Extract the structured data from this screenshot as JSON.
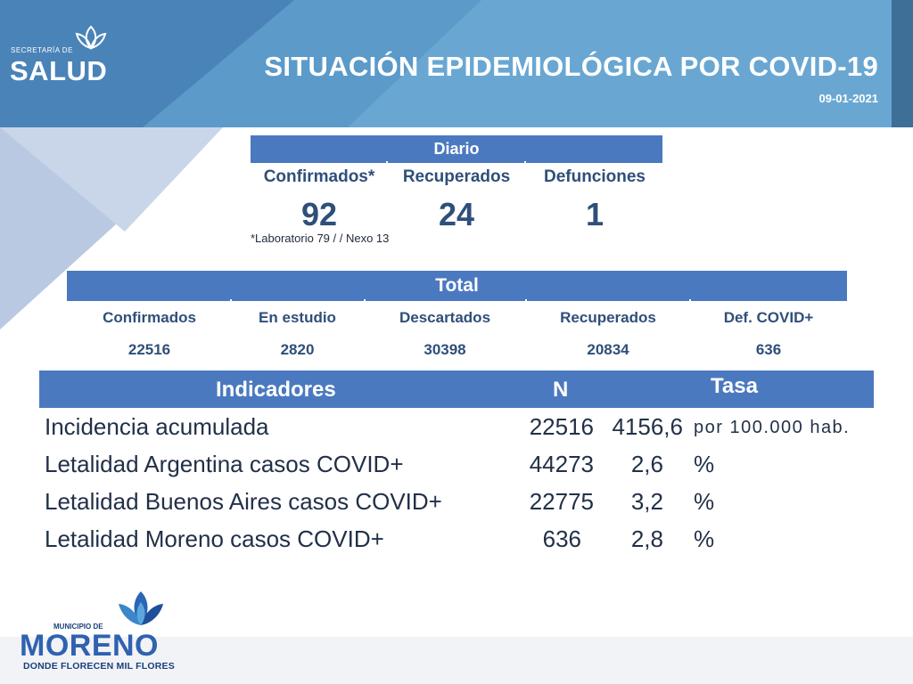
{
  "header": {
    "title": "SITUACIÓN EPIDEMIOLÓGICA POR COVID-19",
    "date": "09-01-2021",
    "logo_small": "SECRETARÍA DE",
    "logo_big": "SALUD",
    "logo_icon": "lotus-flower-icon"
  },
  "diario": {
    "title": "Diario",
    "labels": [
      "Confirmados*",
      "Recuperados",
      "Defunciones"
    ],
    "values": [
      "92",
      "24",
      "1"
    ],
    "note": "*Laboratorio 79 / / Nexo 13"
  },
  "total": {
    "title": "Total",
    "labels": [
      "Confirmados",
      "En estudio",
      "Descartados",
      "Recuperados",
      "Def. COVID+"
    ],
    "values": [
      "22516",
      "2820",
      "30398",
      "20834",
      "636"
    ]
  },
  "indicadores": {
    "col_name": "Indicadores",
    "col_n": "N",
    "col_tasa": "Tasa",
    "rows": [
      {
        "name": "Incidencia acumulada",
        "n": "22516",
        "tasa": "4156,6",
        "unit": "por 100.000 hab."
      },
      {
        "name": "Letalidad Argentina casos COVID+",
        "n": "44273",
        "tasa": "2,6",
        "unit": "%"
      },
      {
        "name": "Letalidad Buenos Aires casos COVID+",
        "n": "22775",
        "tasa": "3,2",
        "unit": "%"
      },
      {
        "name": "Letalidad Moreno casos COVID+",
        "n": "636",
        "tasa": "2,8",
        "unit": "%"
      }
    ]
  },
  "footer": {
    "logo_small": "MUNICIPIO DE",
    "logo_big": "MORENO",
    "logo_tagline": "DONDE FLORECEN MIL FLORES",
    "logo_icon": "flower-icon"
  },
  "colors": {
    "accent_blue": "#4b79c0",
    "banner_dark": "#4a86ba",
    "banner_light": "#6ea7cf",
    "text_navy": "#2f4f7a"
  }
}
